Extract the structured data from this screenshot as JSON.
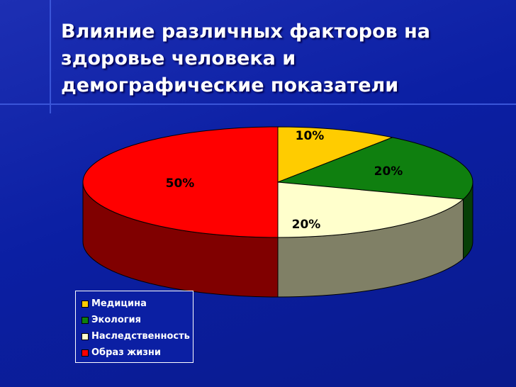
{
  "title_lines": [
    "Влияние различных факторов на",
    "здоровье человека и",
    "демографические показатели"
  ],
  "chart_data": {
    "type": "pie",
    "categories": [
      "Медицина",
      "Экология",
      "Наследственность",
      "Образ жизни"
    ],
    "values": [
      10,
      20,
      20,
      50
    ],
    "data_labels": [
      "10%",
      "20%",
      "20%",
      "50%"
    ],
    "colors": [
      "#ffcc00",
      "#0f7f0f",
      "#ffffcc",
      "#ff0000"
    ],
    "side_colors": [
      "#806600",
      "#073f07",
      "#808066",
      "#800000"
    ],
    "legend_position": "bottom-left",
    "three_d": true
  }
}
